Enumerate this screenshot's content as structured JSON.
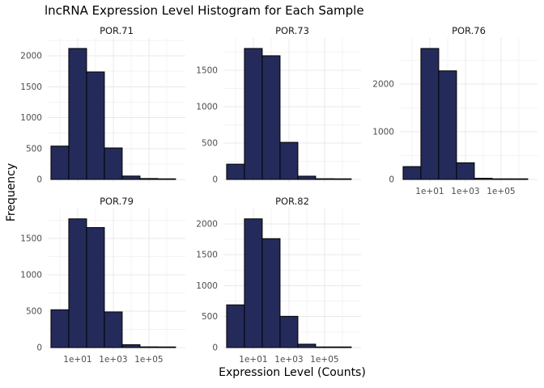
{
  "title": "lncRNA Expression Level Histogram for Each Sample",
  "axes": {
    "x_label": "Expression Level (Counts)",
    "y_label": "Frequency"
  },
  "colors": {
    "background": "#FFFFFF",
    "bar_fill": "#242B5B",
    "bar_stroke": "#000000",
    "grid_major": "#E8E8E8",
    "grid_minor": "#F3F3F3",
    "axis_text": "#4D4D4D",
    "strip_text": "#1A1A1A",
    "title_text": "#000000"
  },
  "chart_data": {
    "type": "bar",
    "variant": "histogram",
    "layout_hint": "facet_wrap 3 columns x 2 rows, last cell empty, grid on, no legend",
    "x_scale": "log10",
    "x_range_log10": [
      -0.68,
      7.05
    ],
    "bin_edges_log10": [
      -0.5,
      0.5,
      1.5,
      2.5,
      3.5,
      4.5,
      5.5,
      6.5
    ],
    "x_ticks": [
      {
        "label": "1e+01",
        "log10": 1
      },
      {
        "label": "1e+03",
        "log10": 3
      },
      {
        "label": "1e+05",
        "log10": 5
      }
    ],
    "x_minor_logs": [
      0,
      2,
      4,
      6
    ],
    "y_headroom_factor": 1.08,
    "panels": [
      {
        "name": "POR.71",
        "row": 0,
        "col": 0,
        "y_ticks": [
          0,
          500,
          1000,
          1500,
          2000
        ],
        "values": [
          540,
          2120,
          1740,
          510,
          55,
          15,
          5
        ],
        "show_x_axis": false
      },
      {
        "name": "POR.73",
        "row": 0,
        "col": 1,
        "y_ticks": [
          0,
          500,
          1000,
          1500
        ],
        "values": [
          210,
          1800,
          1700,
          510,
          45,
          10,
          5
        ],
        "show_x_axis": false
      },
      {
        "name": "POR.76",
        "row": 0,
        "col": 2,
        "y_ticks": [
          0,
          1000,
          2000
        ],
        "values": [
          270,
          2750,
          2280,
          350,
          25,
          8,
          4
        ],
        "show_x_axis": true
      },
      {
        "name": "POR.79",
        "row": 1,
        "col": 0,
        "y_ticks": [
          0,
          500,
          1000,
          1500
        ],
        "values": [
          520,
          1770,
          1650,
          490,
          40,
          10,
          5
        ],
        "show_x_axis": true
      },
      {
        "name": "POR.82",
        "row": 1,
        "col": 1,
        "y_ticks": [
          0,
          500,
          1000,
          1500,
          2000
        ],
        "values": [
          690,
          2080,
          1760,
          505,
          55,
          10,
          5
        ],
        "show_x_axis": true
      }
    ]
  }
}
